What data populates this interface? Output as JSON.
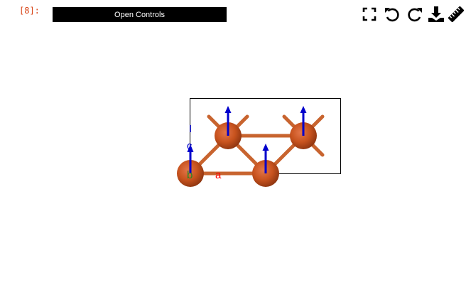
{
  "cell": {
    "prompt": "[8]:"
  },
  "controls": {
    "label": "Open Controls"
  },
  "toolbar": {
    "icons": [
      "fullscreen-icon",
      "undo-icon",
      "redo-icon",
      "download-icon",
      "ruler-icon"
    ]
  },
  "structure": {
    "axis_labels": {
      "a": "a",
      "b": "b",
      "c": "c"
    },
    "atom_color": "#c8531e",
    "bond_color": "#c8642f",
    "axis_colors": {
      "a": "#ff0000",
      "b": "#228b22",
      "c": "#0000cc"
    }
  }
}
